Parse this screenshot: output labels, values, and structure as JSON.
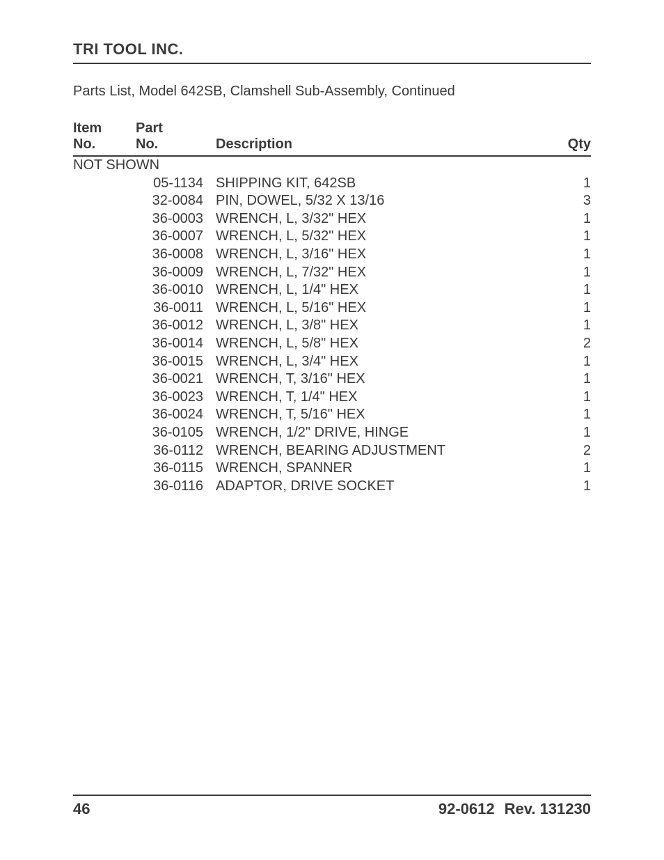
{
  "header": {
    "company": "TRI TOOL INC."
  },
  "subtitle": "Parts List, Model 642SB, Clamshell Sub-Assembly, Continued",
  "table": {
    "columns": {
      "item_no_line1": "Item",
      "item_no_line2": "No.",
      "part_no_line1": "Part",
      "part_no_line2": "No.",
      "description": "Description",
      "qty": "Qty"
    },
    "section_label": "NOT SHOWN",
    "rows": [
      {
        "item_no": "",
        "part_no": "05-1134",
        "description": "SHIPPING KIT, 642SB",
        "qty": "1"
      },
      {
        "item_no": "",
        "part_no": "32-0084",
        "description": "PIN, DOWEL, 5/32 X 13/16",
        "qty": "3"
      },
      {
        "item_no": "",
        "part_no": "36-0003",
        "description": "WRENCH, L, 3/32\" HEX",
        "qty": "1"
      },
      {
        "item_no": "",
        "part_no": "36-0007",
        "description": "WRENCH, L, 5/32\" HEX",
        "qty": "1"
      },
      {
        "item_no": "",
        "part_no": "36-0008",
        "description": "WRENCH, L, 3/16\" HEX",
        "qty": "1"
      },
      {
        "item_no": "",
        "part_no": "36-0009",
        "description": "WRENCH, L, 7/32\" HEX",
        "qty": "1"
      },
      {
        "item_no": "",
        "part_no": "36-0010",
        "description": "WRENCH, L, 1/4\" HEX",
        "qty": "1"
      },
      {
        "item_no": "",
        "part_no": "36-0011",
        "description": "WRENCH, L, 5/16\" HEX",
        "qty": "1"
      },
      {
        "item_no": "",
        "part_no": "36-0012",
        "description": "WRENCH, L, 3/8\" HEX",
        "qty": "1"
      },
      {
        "item_no": "",
        "part_no": "36-0014",
        "description": "WRENCH, L, 5/8\" HEX",
        "qty": "2"
      },
      {
        "item_no": "",
        "part_no": "36-0015",
        "description": "WRENCH, L, 3/4\" HEX",
        "qty": "1"
      },
      {
        "item_no": "",
        "part_no": "36-0021",
        "description": "WRENCH, T, 3/16\" HEX",
        "qty": "1"
      },
      {
        "item_no": "",
        "part_no": "36-0023",
        "description": "WRENCH, T, 1/4\" HEX",
        "qty": "1"
      },
      {
        "item_no": "",
        "part_no": "36-0024",
        "description": "WRENCH, T, 5/16\" HEX",
        "qty": "1"
      },
      {
        "item_no": "",
        "part_no": "36-0105",
        "description": "WRENCH, 1/2\" DRIVE, HINGE",
        "qty": "1"
      },
      {
        "item_no": "",
        "part_no": "36-0112",
        "description": "WRENCH, BEARING ADJUSTMENT",
        "qty": "2"
      },
      {
        "item_no": "",
        "part_no": "36-0115",
        "description": "WRENCH, SPANNER",
        "qty": "1"
      },
      {
        "item_no": "",
        "part_no": "36-0116",
        "description": "ADAPTOR, DRIVE SOCKET",
        "qty": "1"
      }
    ]
  },
  "footer": {
    "page_number": "46",
    "doc_number": "92-0612",
    "revision": "Rev. 131230"
  }
}
